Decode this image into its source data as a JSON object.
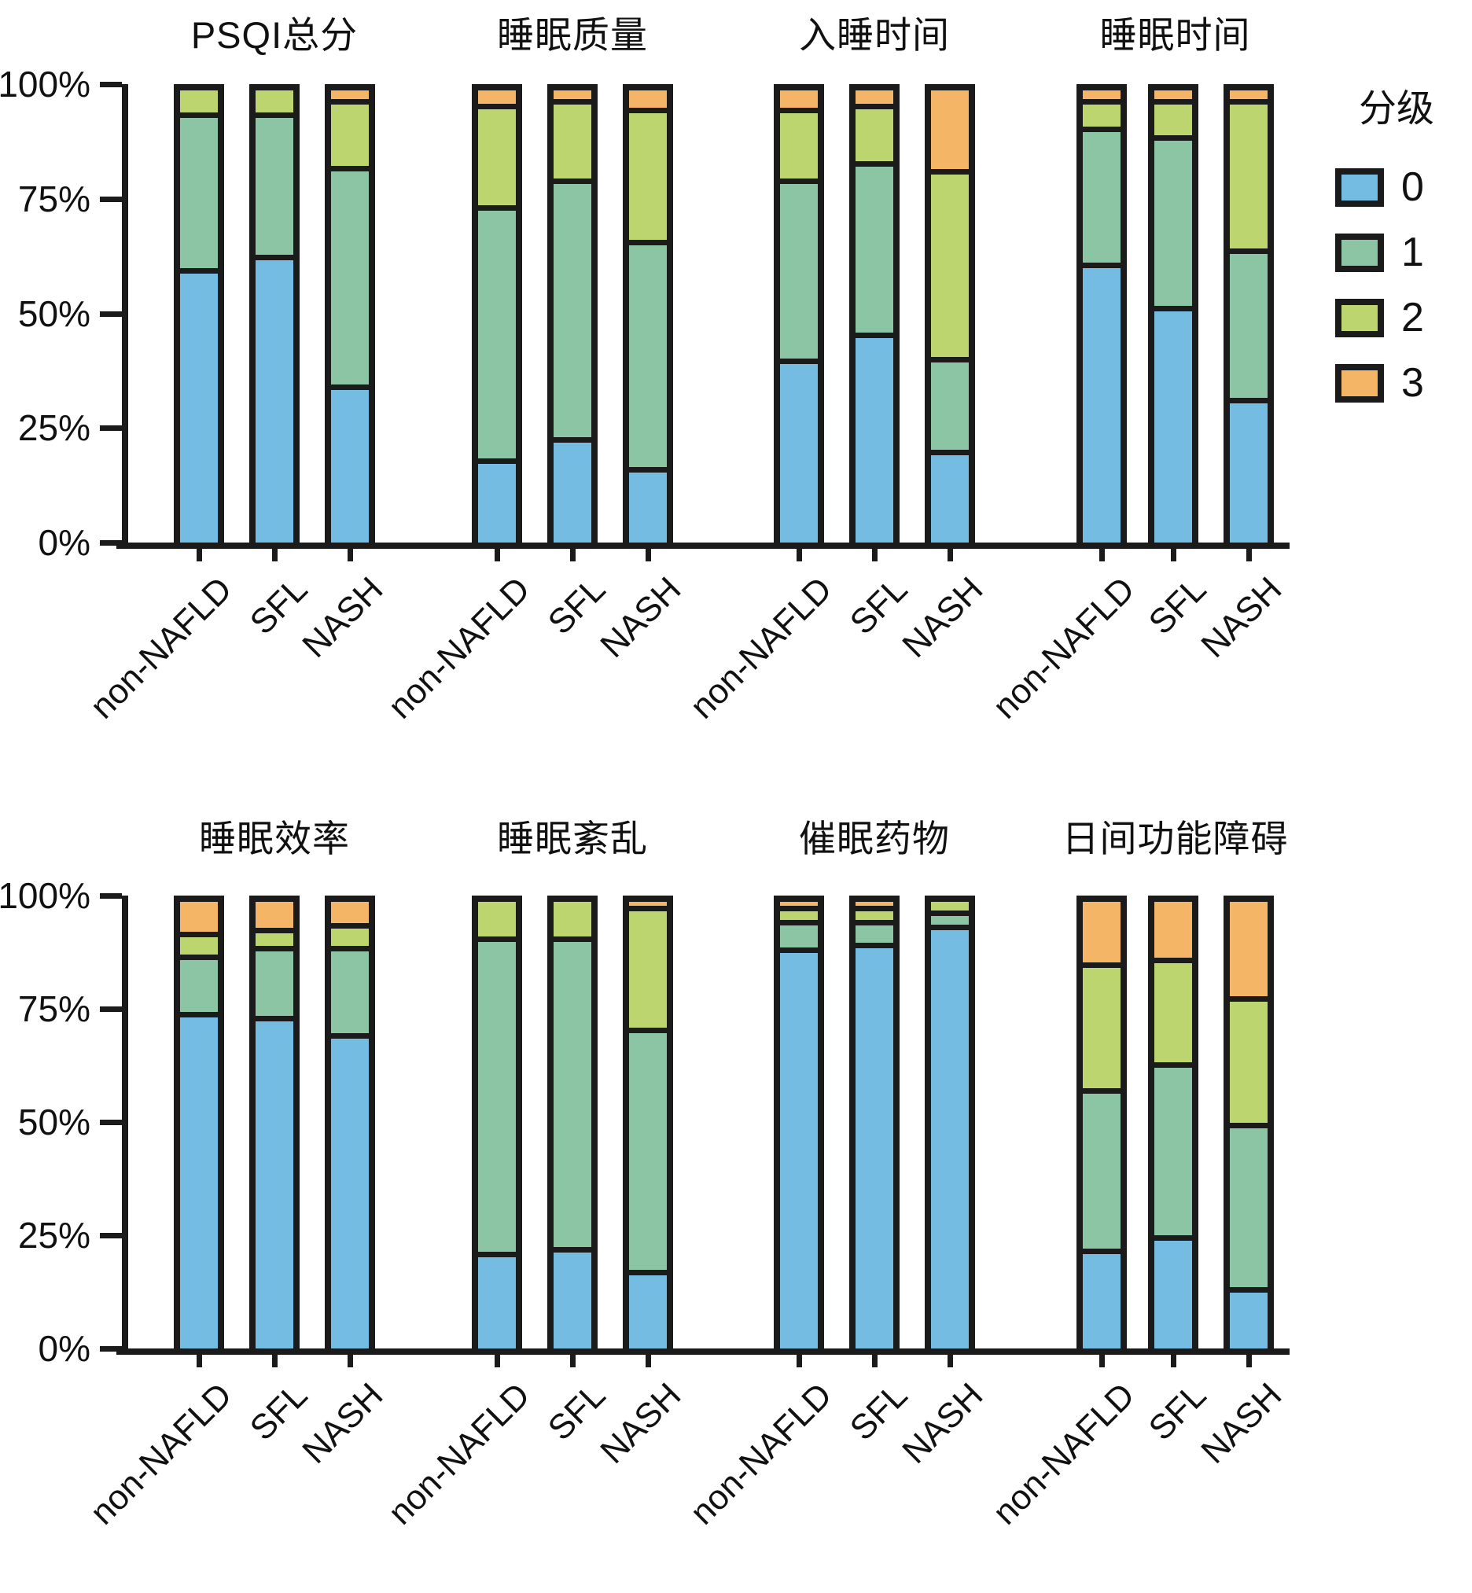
{
  "legend": {
    "title": "分级",
    "entries": [
      {
        "label": "0",
        "color": "#74BCE2"
      },
      {
        "label": "1",
        "color": "#8BC5A4"
      },
      {
        "label": "2",
        "color": "#BCD56F"
      },
      {
        "label": "3",
        "color": "#F5B566"
      }
    ]
  },
  "axis": {
    "y_ticks": [
      "0%",
      "25%",
      "50%",
      "75%",
      "100%"
    ]
  },
  "chart_data": {
    "type": "bar",
    "stacked": true,
    "percent": true,
    "ylim": [
      0,
      100
    ],
    "grid": false,
    "legend_position": "right",
    "categories": [
      "non-NAFLD",
      "SFL",
      "NASH"
    ],
    "levels": [
      "0",
      "1",
      "2",
      "3"
    ],
    "level_colors": {
      "0": "#74BCE2",
      "1": "#8BC5A4",
      "2": "#BCD56F",
      "3": "#F5B566"
    },
    "panels": [
      {
        "title": "PSQI总分",
        "row": 1,
        "values": [
          [
            61,
            34,
            5,
            0
          ],
          [
            64,
            31,
            5,
            0
          ],
          [
            35,
            49,
            14,
            2
          ]
        ]
      },
      {
        "title": "睡眠质量",
        "row": 1,
        "values": [
          [
            18,
            57,
            22,
            3
          ],
          [
            23,
            58,
            17,
            2
          ],
          [
            16,
            51,
            29,
            4
          ]
        ]
      },
      {
        "title": "入睡时间",
        "row": 1,
        "values": [
          [
            41,
            40,
            15,
            4
          ],
          [
            47,
            38,
            12,
            3
          ],
          [
            20,
            20,
            42,
            18
          ]
        ]
      },
      {
        "title": "睡眠时间",
        "row": 1,
        "values": [
          [
            63,
            30,
            5,
            2
          ],
          [
            53,
            38,
            7,
            2
          ],
          [
            32,
            33,
            33,
            2
          ]
        ]
      },
      {
        "title": "睡眠效率",
        "row": 2,
        "values": [
          [
            77,
            12,
            4,
            7
          ],
          [
            76,
            15,
            3,
            6
          ],
          [
            72,
            19,
            4,
            5
          ]
        ]
      },
      {
        "title": "睡眠紊乱",
        "row": 2,
        "values": [
          [
            21,
            71,
            8,
            0
          ],
          [
            22,
            70,
            8,
            0
          ],
          [
            17,
            55,
            27,
            1
          ]
        ]
      },
      {
        "title": "催眠药物",
        "row": 2,
        "values": [
          [
            92,
            5,
            2,
            1
          ],
          [
            93,
            4,
            2,
            1
          ],
          [
            96,
            2,
            2,
            0
          ]
        ]
      },
      {
        "title": "日间功能障碍",
        "row": 2,
        "values": [
          [
            22,
            36,
            28,
            14
          ],
          [
            25,
            39,
            23,
            13
          ],
          [
            13,
            37,
            28,
            22
          ]
        ]
      }
    ]
  }
}
